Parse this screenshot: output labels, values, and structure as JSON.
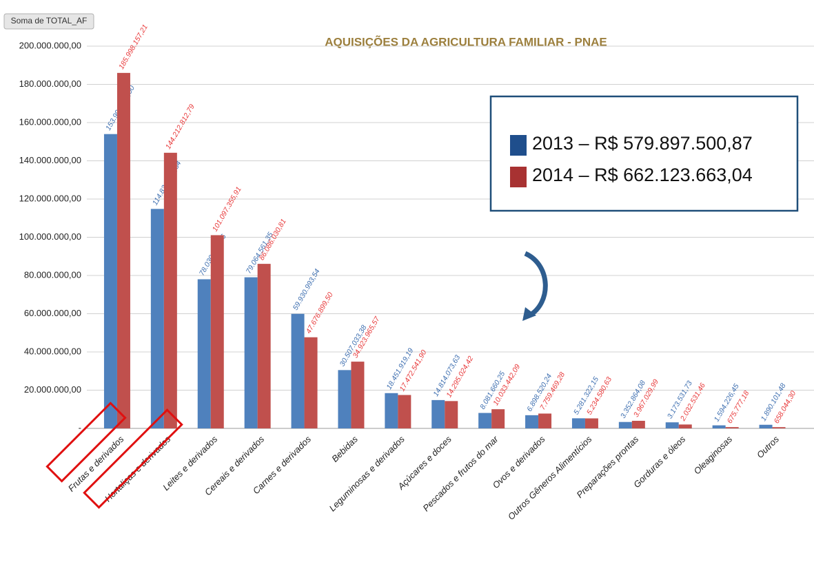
{
  "chart_data": {
    "type": "bar",
    "title": "AQUISIÇÕES DA AGRICULTURA FAMILIAR - PNAE",
    "field_button": "Soma de TOTAL_AF",
    "legend_entries": [
      "2013 – R$ 579.897.500,87",
      "2014 – R$ 662.123.663,04"
    ],
    "categories": [
      "Frutas e derivados",
      "Hortaliças e derivados",
      "Leites e derivados",
      "Cereais e derivados",
      "Carnes e derivados",
      "Bebidas",
      "Leguminosas e derivados",
      "Açúcares e doces",
      "Pescados e frutos do mar",
      "Ovos e derivados",
      "Outros Gêneros Alimentícios",
      "Preparações prontas",
      "Gorduras e óleos",
      "Oleaginosas",
      "Outros"
    ],
    "series": [
      {
        "name": "2013",
        "color": "#4f81bd",
        "values": [
          153991739.0,
          114834551.34,
          78030403.06,
          79064561.35,
          59930993.54,
          30507033.38,
          18451919.19,
          14814073.63,
          8081660.25,
          6898520.24,
          5281322.15,
          3352864.08,
          3173531.73,
          1594226.45,
          1890101.48
        ],
        "value_labels": [
          "153.991.739,00",
          "114.834.551,34",
          "78.030.403,06",
          "79.064.561,35",
          "59.930.993,54",
          "30.507.033,38",
          "18.451.919,19",
          "14.814.073,63",
          "8.081.660,25",
          "6.898.520,24",
          "5.281.322,15",
          "3.352.864,08",
          "3.173.531,73",
          "1.594.226,45",
          "1.890.101,48"
        ]
      },
      {
        "name": "2014",
        "color": "#c0504d",
        "values": [
          185998157.21,
          144212812.79,
          101097355.91,
          86086030.81,
          47676899.5,
          34923965.57,
          17472541.9,
          14295024.42,
          10033442.09,
          7759469.28,
          5234580.63,
          3967029.99,
          2032531.46,
          675777.18,
          658044.3
        ],
        "value_labels": [
          "185.998.157,21",
          "144.212.812,79",
          "101.097.355,91",
          "86.086.030,81",
          "47.676.899,50",
          "34.923.965,57",
          "17.472.541,90",
          "14.295.024,42",
          "10.033.442,09",
          "7.759.469,28",
          "5.234.580,63",
          "3.967.029,99",
          "2.032.531,46",
          "675.777,18",
          "658.044,30"
        ]
      }
    ],
    "ylim": [
      0,
      200000000
    ],
    "yticks": [
      {
        "value": 0,
        "label": "-"
      },
      {
        "value": 20000000,
        "label": "20.000.000,00"
      },
      {
        "value": 40000000,
        "label": "40.000.000,00"
      },
      {
        "value": 60000000,
        "label": "60.000.000,00"
      },
      {
        "value": 80000000,
        "label": "80.000.000,00"
      },
      {
        "value": 100000000,
        "label": "100.000.000,00"
      },
      {
        "value": 120000000,
        "label": "120.000.000,00"
      },
      {
        "value": 140000000,
        "label": "140.000.000,00"
      },
      {
        "value": 160000000,
        "label": "160.000.000,00"
      },
      {
        "value": 180000000,
        "label": "180.000.000,00"
      },
      {
        "value": 200000000,
        "label": "200.000.000,00"
      }
    ],
    "grid": true
  }
}
